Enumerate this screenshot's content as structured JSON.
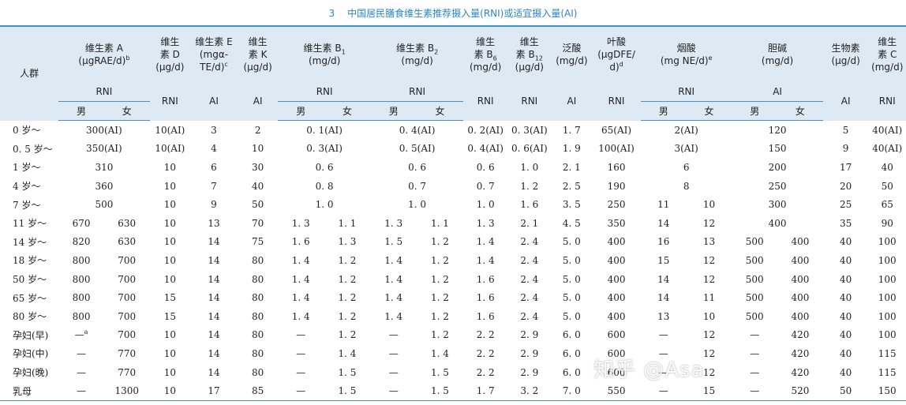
{
  "title": {
    "number": "3",
    "text": "中国居民膳食维生素推荐摄入量(RNI)或适宜摄入量(AI)"
  },
  "header": {
    "population": "人群",
    "groups": {
      "vitA": {
        "name": "维生素 A",
        "unit": "(μgRAE/d)",
        "note": "b",
        "type": "RNI",
        "male": "男",
        "female": "女"
      },
      "vitD": {
        "line1": "维生",
        "line2": "素 D",
        "unit": "(μg/d)",
        "type": "RNI"
      },
      "vitE": {
        "line1": "维生素 E",
        "line2": "(mgα-",
        "line3": "TE/d)",
        "note": "c",
        "type": "AI"
      },
      "vitK": {
        "line1": "维生",
        "line2": "素 K",
        "unit": "(μg/d)",
        "type": "AI"
      },
      "vitB1": {
        "name": "维生素 B",
        "sub": "1",
        "unit": "(mg/d)",
        "type": "RNI",
        "male": "男",
        "female": "女"
      },
      "vitB2": {
        "name": "维生素 B",
        "sub": "2",
        "unit": "(mg/d)",
        "type": "RNI",
        "male": "男",
        "female": "女"
      },
      "vitB6": {
        "line1": "维生",
        "line2": "素 B",
        "sub": "6",
        "unit": "(mg/d)",
        "type": "RNI"
      },
      "vitB12": {
        "line1": "维生",
        "line2": "素 B",
        "sub": "12",
        "unit": "(μg/d)",
        "type": "RNI"
      },
      "pantothenic": {
        "line1": "泛酸",
        "unit": "(mg/d)",
        "type": "AI"
      },
      "folate": {
        "line1": "叶酸",
        "line2": "(μgDFE/",
        "line3": "d)",
        "note": "d",
        "type": "RNI"
      },
      "niacin": {
        "name": "烟酸",
        "unit": "(mg NE/d)",
        "note": "e",
        "type": "RNI",
        "male": "男",
        "female": "女"
      },
      "choline": {
        "name": "胆碱",
        "unit": "(mg/d)",
        "type": "AI",
        "male": "男",
        "female": "女"
      },
      "biotin": {
        "line1": "生物素",
        "unit": "(μg/d)",
        "type": "AI"
      },
      "vitC": {
        "line1": "维生",
        "line2": "素 C",
        "unit": "(mg/d)",
        "type": "RNI"
      }
    }
  },
  "rows": [
    {
      "age": "0 岁～",
      "vitA": "300(AI)",
      "vitD": "10(AI)",
      "vitE": "3",
      "vitK": "2",
      "b1": "0. 1(AI)",
      "b2": "0. 4(AI)",
      "b6": "0. 2(AI)",
      "b12": "0. 3(AI)",
      "pan": "1. 7",
      "fol": "65(AI)",
      "nia": "2(AI)",
      "cho": "120",
      "bio": "5",
      "vc": "40(AI)"
    },
    {
      "age": "0. 5 岁～",
      "vitA": "350(AI)",
      "vitD": "10(AI)",
      "vitE": "4",
      "vitK": "10",
      "b1": "0. 3(AI)",
      "b2": "0. 5(AI)",
      "b6": "0. 4(AI)",
      "b12": "0. 6(AI)",
      "pan": "1. 9",
      "fol": "100(AI)",
      "nia": "3(AI)",
      "cho": "150",
      "bio": "9",
      "vc": "40(AI)"
    },
    {
      "age": "1 岁～",
      "vitA": "310",
      "vitD": "10",
      "vitE": "6",
      "vitK": "30",
      "b1": "0. 6",
      "b2": "0. 6",
      "b6": "0. 6",
      "b12": "1. 0",
      "pan": "2. 1",
      "fol": "160",
      "nia": "6",
      "cho": "200",
      "bio": "17",
      "vc": "40"
    },
    {
      "age": "4 岁～",
      "vitA": "360",
      "vitD": "10",
      "vitE": "7",
      "vitK": "40",
      "b1": "0. 8",
      "b2": "0. 7",
      "b6": "0. 7",
      "b12": "1. 2",
      "pan": "2. 5",
      "fol": "190",
      "nia": "8",
      "cho": "250",
      "bio": "20",
      "vc": "50"
    },
    {
      "age": "7 岁～",
      "vitA": "500",
      "vitD": "10",
      "vitE": "9",
      "vitK": "50",
      "b1": "1. 0",
      "b2": "1. 0",
      "b6": "1. 0",
      "b12": "1. 6",
      "pan": "3. 5",
      "fol": "250",
      "nia_m": "11",
      "nia_f": "10",
      "cho": "300",
      "bio": "25",
      "vc": "65"
    },
    {
      "age": "11 岁～",
      "vitA_m": "670",
      "vitA_f": "630",
      "vitD": "10",
      "vitE": "13",
      "vitK": "70",
      "b1_m": "1. 3",
      "b1_f": "1. 1",
      "b2_m": "1. 3",
      "b2_f": "1. 1",
      "b6": "1. 3",
      "b12": "2. 1",
      "pan": "4. 5",
      "fol": "350",
      "nia_m": "14",
      "nia_f": "12",
      "cho": "400",
      "bio": "35",
      "vc": "90"
    },
    {
      "age": "14 岁～",
      "vitA_m": "820",
      "vitA_f": "630",
      "vitD": "10",
      "vitE": "14",
      "vitK": "75",
      "b1_m": "1. 6",
      "b1_f": "1. 3",
      "b2_m": "1. 5",
      "b2_f": "1. 2",
      "b6": "1. 4",
      "b12": "2. 4",
      "pan": "5. 0",
      "fol": "400",
      "nia_m": "16",
      "nia_f": "13",
      "cho_m": "500",
      "cho_f": "400",
      "bio": "40",
      "vc": "100"
    },
    {
      "age": "18 岁～",
      "vitA_m": "800",
      "vitA_f": "700",
      "vitD": "10",
      "vitE": "14",
      "vitK": "80",
      "b1_m": "1. 4",
      "b1_f": "1. 2",
      "b2_m": "1. 4",
      "b2_f": "1. 2",
      "b6": "1. 4",
      "b12": "2. 4",
      "pan": "5. 0",
      "fol": "400",
      "nia_m": "15",
      "nia_f": "12",
      "cho_m": "500",
      "cho_f": "400",
      "bio": "40",
      "vc": "100"
    },
    {
      "age": "50 岁～",
      "vitA_m": "800",
      "vitA_f": "700",
      "vitD": "10",
      "vitE": "14",
      "vitK": "80",
      "b1_m": "1. 4",
      "b1_f": "1. 2",
      "b2_m": "1. 4",
      "b2_f": "1. 2",
      "b6": "1. 6",
      "b12": "2. 4",
      "pan": "5. 0",
      "fol": "400",
      "nia_m": "14",
      "nia_f": "12",
      "cho_m": "500",
      "cho_f": "400",
      "bio": "40",
      "vc": "100"
    },
    {
      "age": "65 岁～",
      "vitA_m": "800",
      "vitA_f": "700",
      "vitD": "15",
      "vitE": "14",
      "vitK": "80",
      "b1_m": "1. 4",
      "b1_f": "1. 2",
      "b2_m": "1. 4",
      "b2_f": "1. 2",
      "b6": "1. 6",
      "b12": "2. 4",
      "pan": "5. 0",
      "fol": "400",
      "nia_m": "14",
      "nia_f": "11",
      "cho_m": "500",
      "cho_f": "400",
      "bio": "40",
      "vc": "100"
    },
    {
      "age": "80 岁～",
      "vitA_m": "800",
      "vitA_f": "700",
      "vitD": "15",
      "vitE": "14",
      "vitK": "80",
      "b1_m": "1. 4",
      "b1_f": "1. 2",
      "b2_m": "1. 4",
      "b2_f": "1. 2",
      "b6": "1. 6",
      "b12": "2. 4",
      "pan": "5. 0",
      "fol": "400",
      "nia_m": "13",
      "nia_f": "10",
      "cho_m": "500",
      "cho_f": "400",
      "bio": "40",
      "vc": "100"
    },
    {
      "age": "孕妇(早)",
      "vitA_m": "—",
      "vitA_note": "a",
      "vitA_f": "700",
      "vitD": "10",
      "vitE": "14",
      "vitK": "80",
      "b1_m": "—",
      "b1_f": "1. 2",
      "b2_m": "—",
      "b2_f": "1. 2",
      "b6": "2. 2",
      "b12": "2. 9",
      "pan": "6. 0",
      "fol": "600",
      "nia_m": "—",
      "nia_f": "12",
      "cho_m": "—",
      "cho_f": "420",
      "bio": "40",
      "vc": "100"
    },
    {
      "age": "孕妇(中)",
      "vitA_m": "—",
      "vitA_f": "770",
      "vitD": "10",
      "vitE": "14",
      "vitK": "80",
      "b1_m": "—",
      "b1_f": "1. 4",
      "b2_m": "—",
      "b2_f": "1. 4",
      "b6": "2. 2",
      "b12": "2. 9",
      "pan": "6. 0",
      "fol": "600",
      "nia_m": "—",
      "nia_f": "12",
      "cho_m": "—",
      "cho_f": "420",
      "bio": "40",
      "vc": "115"
    },
    {
      "age": "孕妇(晚)",
      "vitA_m": "—",
      "vitA_f": "770",
      "vitD": "10",
      "vitE": "14",
      "vitK": "80",
      "b1_m": "—",
      "b1_f": "1. 5",
      "b2_m": "—",
      "b2_f": "1. 5",
      "b6": "2. 2",
      "b12": "2. 9",
      "pan": "6. 0",
      "fol": "600",
      "nia_m": "—",
      "nia_f": "12",
      "cho_m": "—",
      "cho_f": "420",
      "bio": "40",
      "vc": "115"
    },
    {
      "age": "乳母",
      "vitA_m": "—",
      "vitA_f": "1300",
      "vitD": "10",
      "vitE": "17",
      "vitK": "85",
      "b1_m": "—",
      "b1_f": "1. 5",
      "b2_m": "—",
      "b2_f": "1. 5",
      "b6": "1. 7",
      "b12": "3. 2",
      "pan": "7. 0",
      "fol": "550",
      "nia_m": "—",
      "nia_f": "15",
      "cho_m": "—",
      "cho_f": "520",
      "bio": "50",
      "vc": "150"
    }
  ],
  "watermark": "知乎 @Asa",
  "colors": {
    "header_bg": "#dde9f3",
    "rule": "#3a97d6",
    "title": "#2a86c8"
  }
}
